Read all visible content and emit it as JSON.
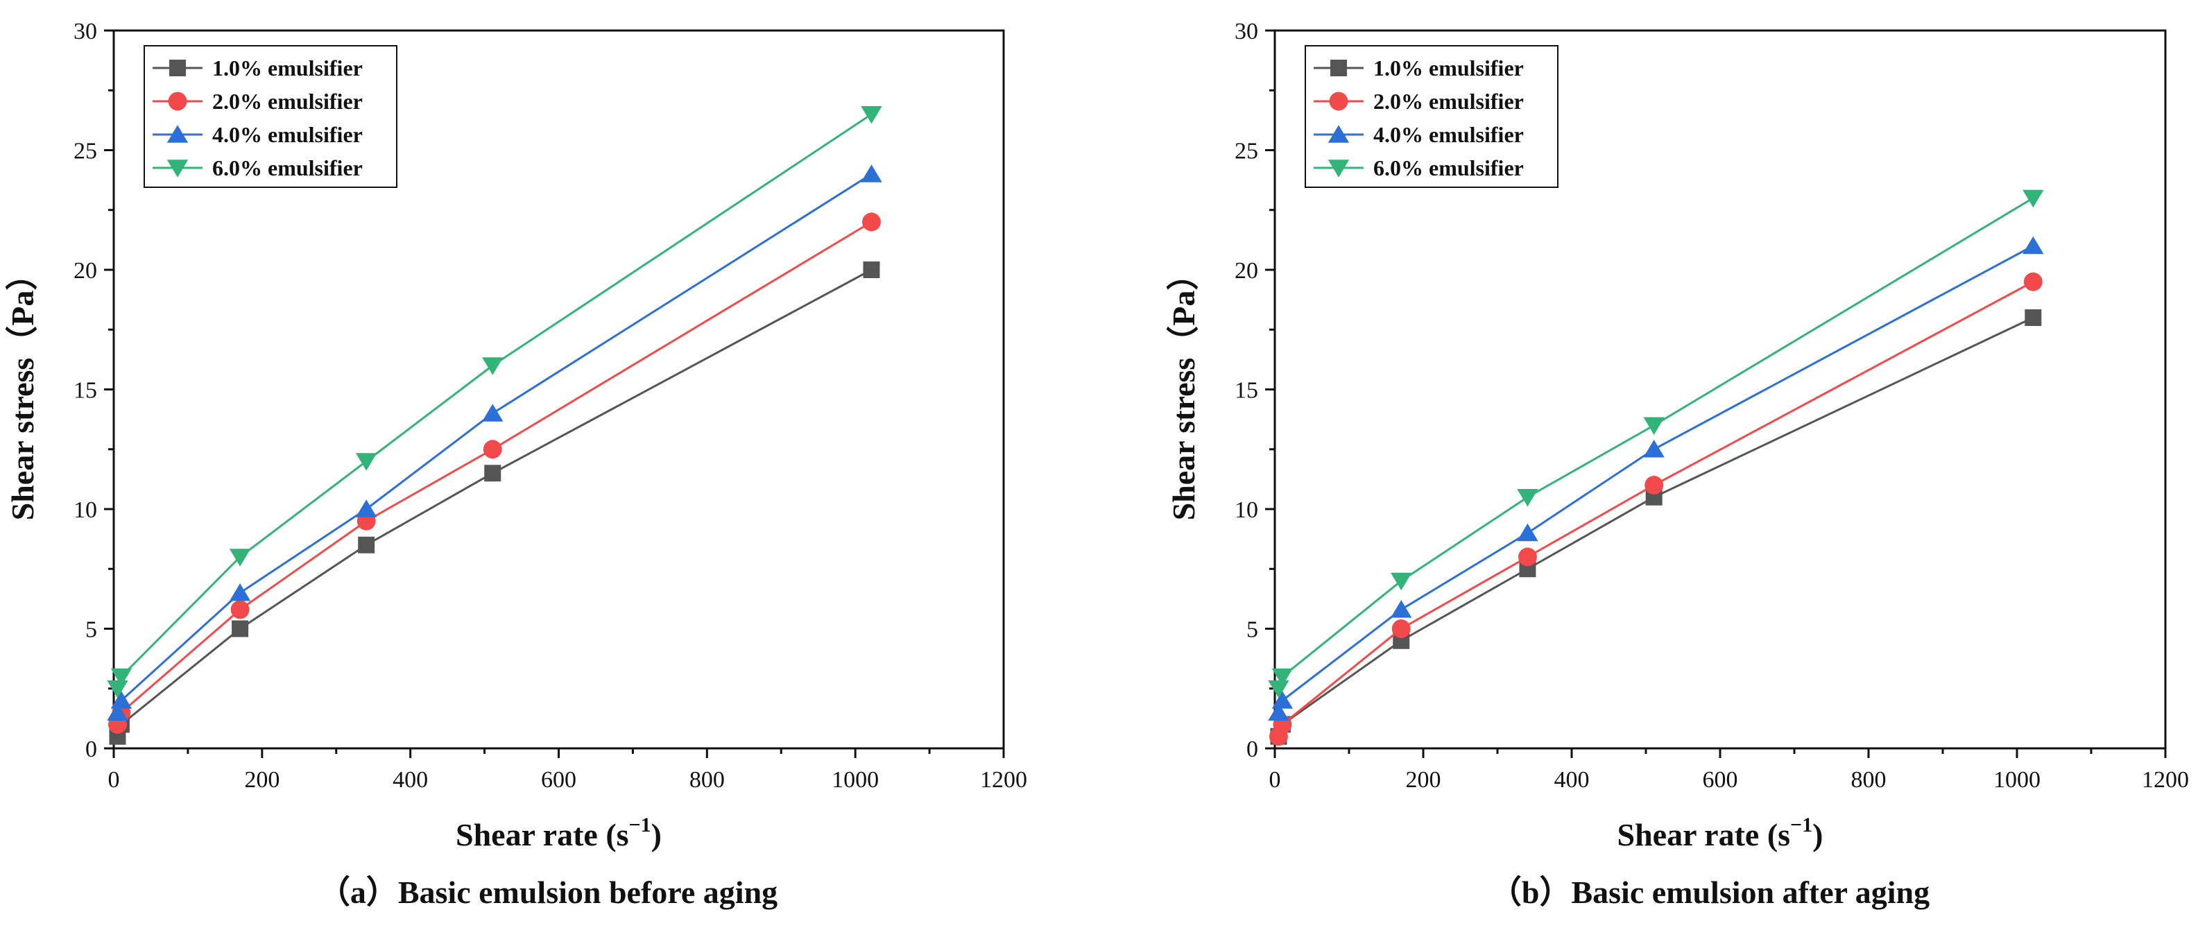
{
  "chart_data": [
    {
      "type": "line",
      "caption": "（a）Basic emulsion before aging",
      "xlabel": "Shear rate (s",
      "xlabel_sup": "−1",
      "xlabel_close": ")",
      "ylabel": "Shear stress（Pa）",
      "xlim": [
        0,
        1200
      ],
      "ylim": [
        0,
        30
      ],
      "xticks": [
        0,
        200,
        400,
        600,
        800,
        1000,
        1200
      ],
      "yticks": [
        0,
        5,
        10,
        15,
        20,
        25,
        30
      ],
      "legend_position": "top-left",
      "x": [
        5.1,
        10.2,
        170.3,
        340.6,
        510.9,
        1021.8
      ],
      "series": [
        {
          "name": "1.0% emulsifier",
          "color": "#555555",
          "marker": "square",
          "values": [
            0.5,
            1.0,
            5.0,
            8.5,
            11.5,
            20.0
          ]
        },
        {
          "name": "2.0% emulsifier",
          "color": "#f24a4a",
          "marker": "circle",
          "values": [
            1.0,
            1.5,
            5.8,
            9.5,
            12.5,
            22.0
          ]
        },
        {
          "name": "4.0% emulsifier",
          "color": "#2b6fd8",
          "marker": "triangle-up",
          "values": [
            1.5,
            2.0,
            6.5,
            10.0,
            14.0,
            24.0
          ]
        },
        {
          "name": "6.0% emulsifier",
          "color": "#32b478",
          "marker": "triangle-down",
          "values": [
            2.5,
            3.0,
            8.0,
            12.0,
            16.0,
            26.5
          ]
        }
      ]
    },
    {
      "type": "line",
      "caption": "（b）Basic emulsion after aging",
      "xlabel": "Shear rate (s",
      "xlabel_sup": "−1",
      "xlabel_close": ")",
      "ylabel": "Shear stress（Pa）",
      "xlim": [
        0,
        1200
      ],
      "ylim": [
        0,
        30
      ],
      "xticks": [
        0,
        200,
        400,
        600,
        800,
        1000,
        1200
      ],
      "yticks": [
        0,
        5,
        10,
        15,
        20,
        25,
        30
      ],
      "legend_position": "top-left",
      "x": [
        5.1,
        10.2,
        170.3,
        340.6,
        510.9,
        1021.8
      ],
      "series": [
        {
          "name": "1.0% emulsifier",
          "color": "#555555",
          "marker": "square",
          "values": [
            0.5,
            1.0,
            4.5,
            7.5,
            10.5,
            18.0
          ]
        },
        {
          "name": "2.0% emulsifier",
          "color": "#f24a4a",
          "marker": "circle",
          "values": [
            0.5,
            1.0,
            5.0,
            8.0,
            11.0,
            19.5
          ]
        },
        {
          "name": "4.0% emulsifier",
          "color": "#2b6fd8",
          "marker": "triangle-up",
          "values": [
            1.5,
            2.0,
            5.8,
            9.0,
            12.5,
            21.0
          ]
        },
        {
          "name": "6.0% emulsifier",
          "color": "#32b478",
          "marker": "triangle-down",
          "values": [
            2.5,
            3.0,
            7.0,
            10.5,
            13.5,
            23.0
          ]
        }
      ]
    }
  ]
}
